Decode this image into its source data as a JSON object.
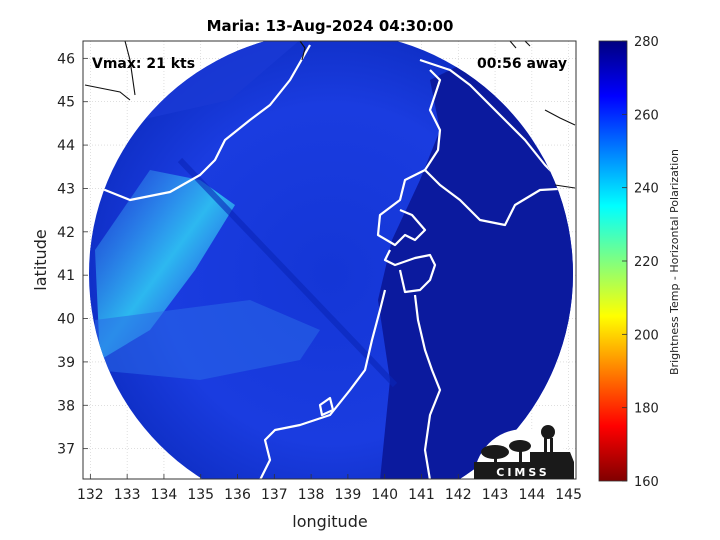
{
  "chart_data": {
    "type": "heatmap",
    "title": "Maria: 13-Aug-2024 04:30:00",
    "xlabel": "longitude",
    "ylabel": "latitude",
    "xlim": [
      131.8,
      145.2
    ],
    "ylim": [
      36.3,
      46.4
    ],
    "x_ticks": [
      132,
      133,
      134,
      135,
      136,
      137,
      138,
      139,
      140,
      141,
      142,
      143,
      144,
      145
    ],
    "y_ticks": [
      37,
      38,
      39,
      40,
      41,
      42,
      43,
      44,
      45,
      46
    ],
    "grid": true,
    "annotations": {
      "vmax": "Vmax: 21 kts",
      "time_away": "00:56 away"
    },
    "colorbar": {
      "label": "Brightness Temp - Horizontal Polarization",
      "range": [
        160,
        280
      ],
      "ticks": [
        160,
        180,
        200,
        220,
        240,
        260,
        280
      ],
      "colormap": "jet"
    },
    "field": {
      "center": [
        138.3,
        41.2
      ],
      "radius_deg": 5.3,
      "dominant_value": 262
    },
    "logo_text": "CIMSS",
    "colors": {
      "deep_blue": "#0a1fb0",
      "land_blue": "#0c1896",
      "coast_line": "#ffffff",
      "cyan_band": "#2fc6f2"
    }
  }
}
